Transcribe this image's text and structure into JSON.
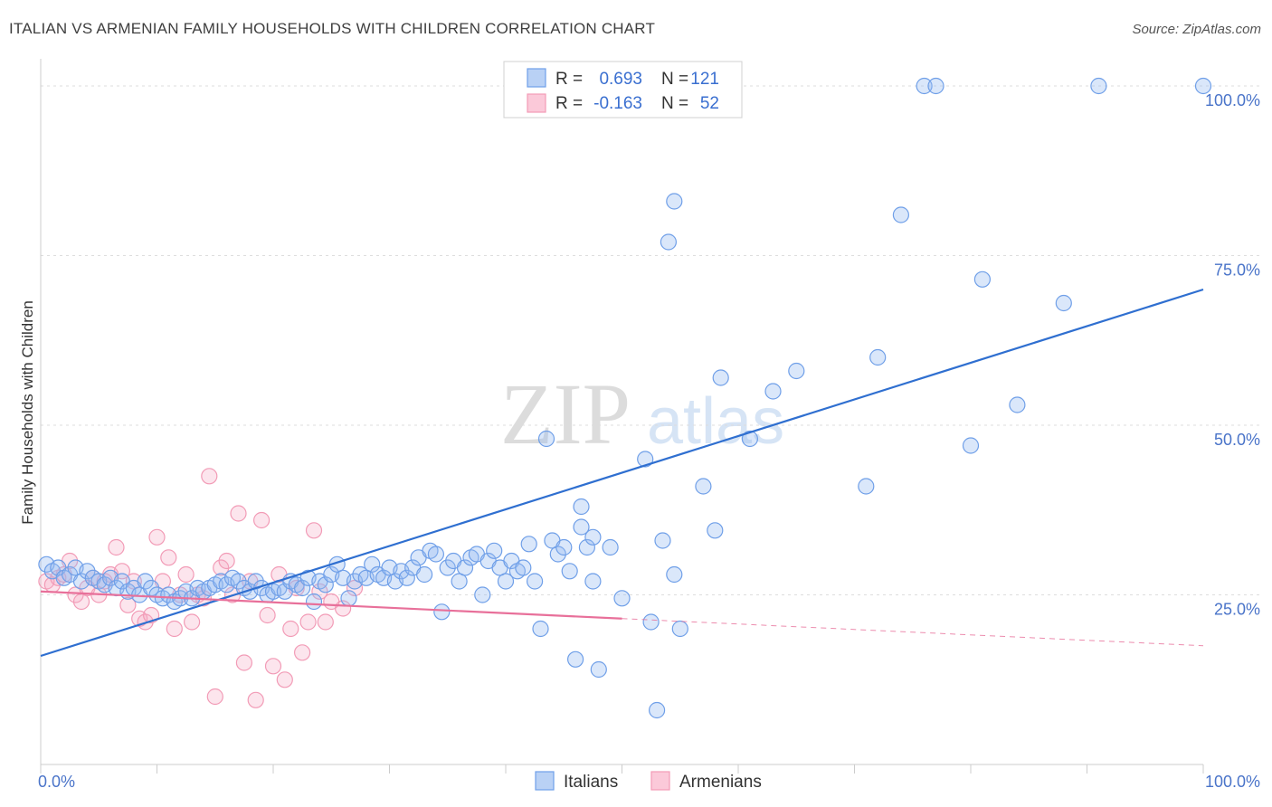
{
  "title": "ITALIAN VS ARMENIAN FAMILY HOUSEHOLDS WITH CHILDREN CORRELATION CHART",
  "source": "Source: ZipAtlas.com",
  "watermark": {
    "zip": "ZIP",
    "atlas": "atlas"
  },
  "legend": {
    "r_label": "R =",
    "n_label": "N =",
    "rows": [
      {
        "r": "0.693",
        "n": "121",
        "color": "#6f9fe8"
      },
      {
        "r": "-0.163",
        "n": "52",
        "color": "#f29bb6"
      }
    ]
  },
  "chart_data": {
    "type": "scatter",
    "title": "ITALIAN VS ARMENIAN FAMILY HOUSEHOLDS WITH CHILDREN CORRELATION CHART",
    "xlabel": "",
    "ylabel": "Family Households with Children",
    "xlim": [
      0,
      100
    ],
    "ylim": [
      0,
      104
    ],
    "x_tick_labels": [
      "0.0%",
      "100.0%"
    ],
    "y_ticks": [
      25,
      50,
      75,
      100
    ],
    "y_tick_labels": [
      "25.0%",
      "50.0%",
      "75.0%",
      "100.0%"
    ],
    "grid": true,
    "legend_position": "top-center",
    "series": [
      {
        "name": "Italians",
        "color": "#6f9fe8",
        "r": 0.693,
        "n": 121,
        "trend": {
          "x": [
            0,
            100
          ],
          "y": [
            16.0,
            70.0
          ],
          "solid_until": 100
        },
        "points": [
          [
            0.5,
            29.5
          ],
          [
            1,
            28.5
          ],
          [
            1.5,
            29
          ],
          [
            2,
            27.5
          ],
          [
            2.5,
            28
          ],
          [
            3,
            29
          ],
          [
            3.5,
            27
          ],
          [
            4,
            28.5
          ],
          [
            4.5,
            27.5
          ],
          [
            5,
            27
          ],
          [
            5.5,
            26.5
          ],
          [
            6,
            27.5
          ],
          [
            6.5,
            26
          ],
          [
            7,
            27
          ],
          [
            7.5,
            25.5
          ],
          [
            8,
            26
          ],
          [
            8.5,
            25
          ],
          [
            9,
            27
          ],
          [
            9.5,
            26
          ],
          [
            10,
            25
          ],
          [
            10.5,
            24.5
          ],
          [
            11,
            25
          ],
          [
            11.5,
            24
          ],
          [
            12,
            24.5
          ],
          [
            12.5,
            25.5
          ],
          [
            13,
            24.5
          ],
          [
            13.5,
            26
          ],
          [
            14,
            25.5
          ],
          [
            14.5,
            26
          ],
          [
            15,
            26.5
          ],
          [
            15.5,
            27
          ],
          [
            16,
            26.5
          ],
          [
            16.5,
            27.5
          ],
          [
            17,
            27
          ],
          [
            17.5,
            26
          ],
          [
            18,
            25.5
          ],
          [
            18.5,
            27
          ],
          [
            19,
            26
          ],
          [
            19.5,
            25
          ],
          [
            20,
            25.5
          ],
          [
            20.5,
            26
          ],
          [
            21,
            25.5
          ],
          [
            21.5,
            27
          ],
          [
            22,
            26.5
          ],
          [
            22.5,
            26
          ],
          [
            23,
            27.5
          ],
          [
            23.5,
            24
          ],
          [
            24,
            27
          ],
          [
            24.5,
            26.5
          ],
          [
            25,
            28
          ],
          [
            25.5,
            29.5
          ],
          [
            26,
            27.5
          ],
          [
            26.5,
            24.5
          ],
          [
            27,
            27
          ],
          [
            27.5,
            28
          ],
          [
            28,
            27.5
          ],
          [
            28.5,
            29.5
          ],
          [
            29,
            28
          ],
          [
            29.5,
            27.5
          ],
          [
            30,
            29
          ],
          [
            30.5,
            27
          ],
          [
            31,
            28.5
          ],
          [
            31.5,
            27.5
          ],
          [
            32,
            29
          ],
          [
            32.5,
            30.5
          ],
          [
            33,
            28
          ],
          [
            33.5,
            31.5
          ],
          [
            34,
            31
          ],
          [
            34.5,
            22.5
          ],
          [
            35,
            29
          ],
          [
            35.5,
            30
          ],
          [
            36,
            27
          ],
          [
            36.5,
            29
          ],
          [
            37,
            30.5
          ],
          [
            37.5,
            31
          ],
          [
            38,
            25
          ],
          [
            38.5,
            30
          ],
          [
            39,
            31.5
          ],
          [
            39.5,
            29
          ],
          [
            40,
            27
          ],
          [
            40.5,
            30
          ],
          [
            41,
            28.5
          ],
          [
            41.5,
            29
          ],
          [
            42,
            32.5
          ],
          [
            42.5,
            27
          ],
          [
            43,
            20
          ],
          [
            43.5,
            48
          ],
          [
            44,
            33
          ],
          [
            44.5,
            31
          ],
          [
            45,
            32
          ],
          [
            45.5,
            28.5
          ],
          [
            46,
            15.5
          ],
          [
            46.5,
            38
          ],
          [
            46.5,
            35
          ],
          [
            47,
            32
          ],
          [
            47.5,
            27
          ],
          [
            47.5,
            33.5
          ],
          [
            48,
            14
          ],
          [
            49,
            32
          ],
          [
            50,
            24.5
          ],
          [
            52,
            45
          ],
          [
            52.5,
            21
          ],
          [
            53,
            8
          ],
          [
            53.5,
            33
          ],
          [
            54,
            77
          ],
          [
            54.5,
            83
          ],
          [
            54.5,
            28
          ],
          [
            55,
            20
          ],
          [
            57,
            41
          ],
          [
            58,
            34.5
          ],
          [
            58.5,
            57
          ],
          [
            61,
            48
          ],
          [
            63,
            55
          ],
          [
            65,
            58
          ],
          [
            71,
            41
          ],
          [
            72,
            60
          ],
          [
            74,
            81
          ],
          [
            76,
            100
          ],
          [
            77,
            100
          ],
          [
            80,
            47
          ],
          [
            81,
            71.5
          ],
          [
            84,
            53
          ],
          [
            88,
            68
          ],
          [
            91,
            100
          ],
          [
            100,
            100
          ]
        ]
      },
      {
        "name": "Armenians",
        "color": "#f29bb6",
        "r": -0.163,
        "n": 52,
        "trend": {
          "x": [
            0,
            100
          ],
          "y": [
            25.5,
            17.5
          ],
          "solid_until": 50
        },
        "points": [
          [
            0.5,
            27
          ],
          [
            1,
            26.5
          ],
          [
            1.5,
            27.5
          ],
          [
            2,
            28
          ],
          [
            2.5,
            30
          ],
          [
            3,
            25
          ],
          [
            3.5,
            24
          ],
          [
            4,
            26
          ],
          [
            4.5,
            27.5
          ],
          [
            5,
            25
          ],
          [
            5.5,
            27
          ],
          [
            6,
            28
          ],
          [
            6.5,
            32
          ],
          [
            7,
            28.5
          ],
          [
            7.5,
            23.5
          ],
          [
            8,
            27
          ],
          [
            8.5,
            21.5
          ],
          [
            9,
            21
          ],
          [
            9.5,
            22
          ],
          [
            10,
            33.5
          ],
          [
            10.5,
            27
          ],
          [
            11,
            30.5
          ],
          [
            11.5,
            20
          ],
          [
            12,
            25
          ],
          [
            12.5,
            28
          ],
          [
            13,
            21
          ],
          [
            13.5,
            25
          ],
          [
            14,
            24.5
          ],
          [
            14.5,
            42.5
          ],
          [
            15,
            10
          ],
          [
            15.5,
            29
          ],
          [
            16,
            30
          ],
          [
            16.5,
            25
          ],
          [
            17,
            37
          ],
          [
            17.5,
            15
          ],
          [
            18,
            27
          ],
          [
            18.5,
            9.5
          ],
          [
            19,
            36
          ],
          [
            19.5,
            22
          ],
          [
            20,
            14.5
          ],
          [
            20.5,
            28
          ],
          [
            21,
            12.5
          ],
          [
            21.5,
            20
          ],
          [
            22,
            26
          ],
          [
            22.5,
            16.5
          ],
          [
            23,
            21
          ],
          [
            23.5,
            34.5
          ],
          [
            24,
            25.5
          ],
          [
            24.5,
            21
          ],
          [
            25,
            24
          ],
          [
            26,
            23
          ],
          [
            27,
            26
          ]
        ]
      }
    ]
  },
  "bottom_legend": [
    {
      "name": "Italians",
      "color": "#6f9fe8"
    },
    {
      "name": "Armenians",
      "color": "#f29bb6"
    }
  ]
}
